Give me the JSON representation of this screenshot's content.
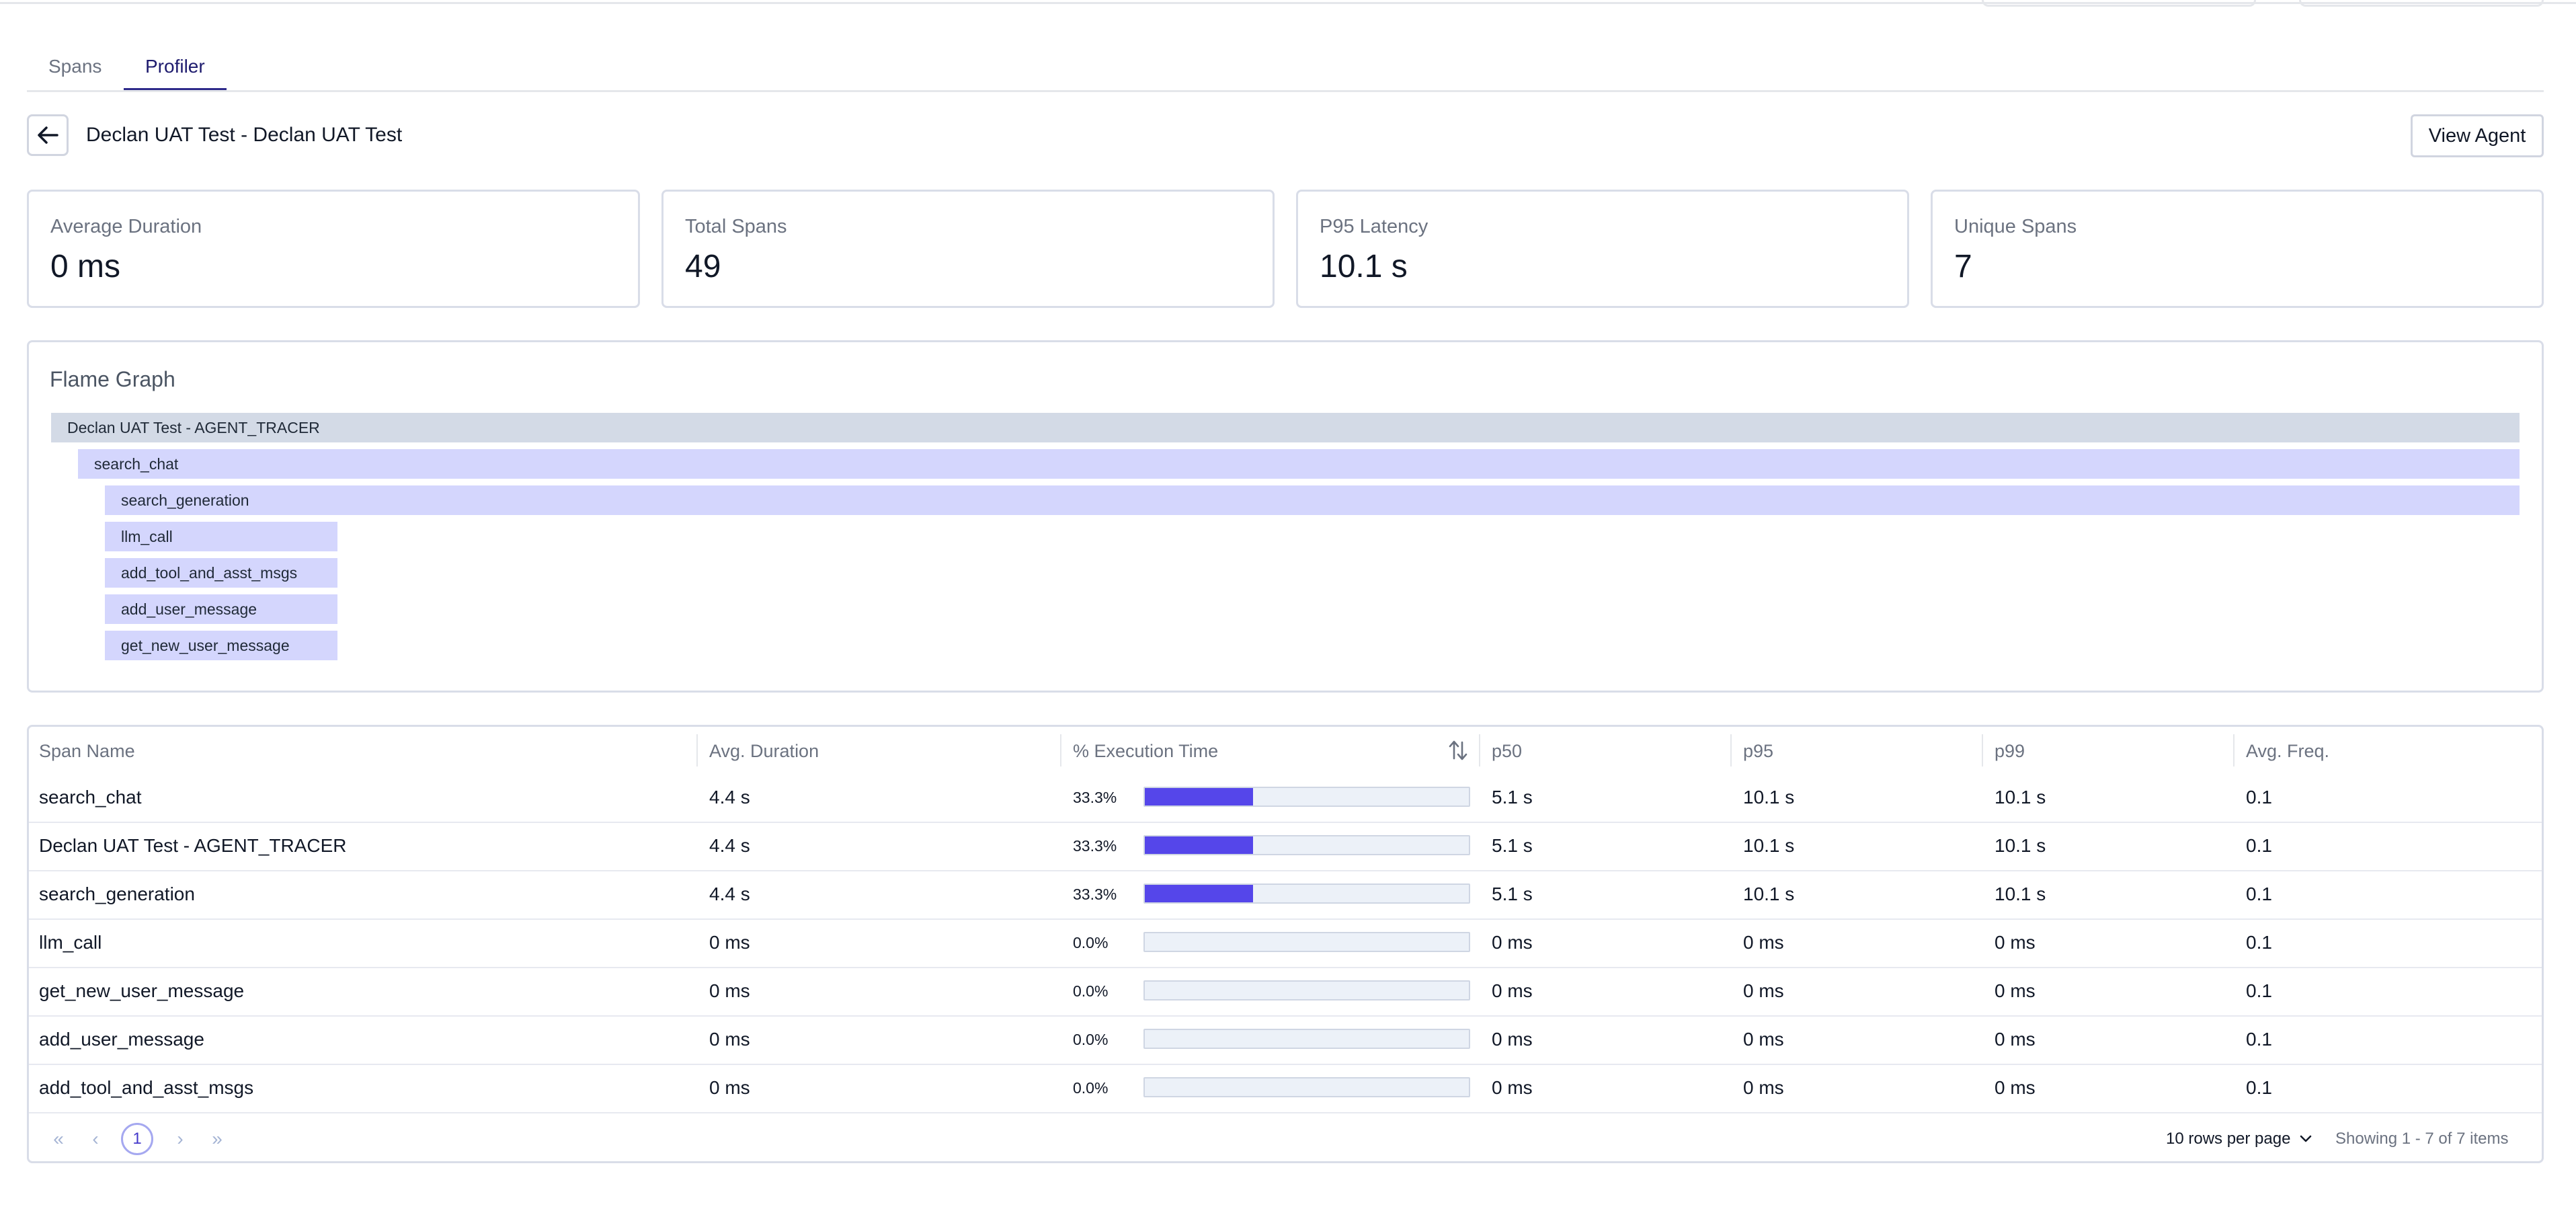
{
  "tabs": [
    {
      "label": "Spans",
      "active": false
    },
    {
      "label": "Profiler",
      "active": true
    }
  ],
  "header": {
    "title": "Declan UAT Test - Declan UAT Test",
    "back_icon": "arrow-left-icon",
    "view_agent_label": "View Agent"
  },
  "stats": [
    {
      "label": "Average Duration",
      "value": "0 ms"
    },
    {
      "label": "Total Spans",
      "value": "49"
    },
    {
      "label": "P95 Latency",
      "value": "10.1 s"
    },
    {
      "label": "Unique Spans",
      "value": "7"
    }
  ],
  "flame_graph": {
    "title": "Flame Graph",
    "bars": [
      {
        "label": "Declan UAT Test - AGENT_TRACER",
        "depth": 0
      },
      {
        "label": "search_chat",
        "depth": 1
      },
      {
        "label": "search_generation",
        "depth": 2
      },
      {
        "label": "llm_call",
        "depth": 2
      },
      {
        "label": "add_tool_and_asst_msgs",
        "depth": 2
      },
      {
        "label": "add_user_message",
        "depth": 2
      },
      {
        "label": "get_new_user_message",
        "depth": 2
      }
    ]
  },
  "table": {
    "columns": [
      "Span Name",
      "Avg. Duration",
      "% Execution Time",
      "p50",
      "p95",
      "p99",
      "Avg. Freq."
    ],
    "sort_icon": "sort-arrows-icon",
    "rows": [
      {
        "name": "search_chat",
        "avg": "4.4 s",
        "pct": "33.3%",
        "pct_value": 33.3,
        "p50": "5.1 s",
        "p95": "10.1 s",
        "p99": "10.1 s",
        "freq": "0.1"
      },
      {
        "name": "Declan UAT Test - AGENT_TRACER",
        "avg": "4.4 s",
        "pct": "33.3%",
        "pct_value": 33.3,
        "p50": "5.1 s",
        "p95": "10.1 s",
        "p99": "10.1 s",
        "freq": "0.1"
      },
      {
        "name": "search_generation",
        "avg": "4.4 s",
        "pct": "33.3%",
        "pct_value": 33.3,
        "p50": "5.1 s",
        "p95": "10.1 s",
        "p99": "10.1 s",
        "freq": "0.1"
      },
      {
        "name": "llm_call",
        "avg": "0 ms",
        "pct": "0.0%",
        "pct_value": 0,
        "p50": "0 ms",
        "p95": "0 ms",
        "p99": "0 ms",
        "freq": "0.1"
      },
      {
        "name": "get_new_user_message",
        "avg": "0 ms",
        "pct": "0.0%",
        "pct_value": 0,
        "p50": "0 ms",
        "p95": "0 ms",
        "p99": "0 ms",
        "freq": "0.1"
      },
      {
        "name": "add_user_message",
        "avg": "0 ms",
        "pct": "0.0%",
        "pct_value": 0,
        "p50": "0 ms",
        "p95": "0 ms",
        "p99": "0 ms",
        "freq": "0.1"
      },
      {
        "name": "add_tool_and_asst_msgs",
        "avg": "0 ms",
        "pct": "0.0%",
        "pct_value": 0,
        "p50": "0 ms",
        "p95": "0 ms",
        "p99": "0 ms",
        "freq": "0.1"
      }
    ]
  },
  "pagination": {
    "first_icon": "«",
    "prev_icon": "‹",
    "current_page": "1",
    "next_icon": "›",
    "last_icon": "»",
    "rows_per_page": "10 rows per page",
    "showing": "Showing 1 - 7 of 7 items"
  },
  "colors": {
    "accent": "#5546ea",
    "flame_root": "#d3dae6",
    "flame_child": "#d4d6fd",
    "tab_active": "#2e2a8a"
  }
}
